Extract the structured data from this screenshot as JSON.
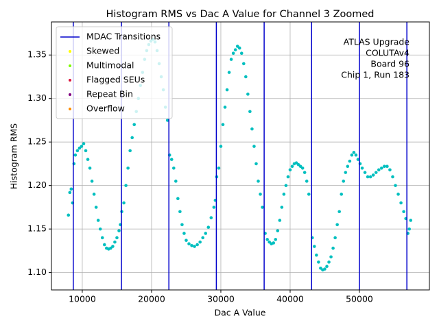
{
  "chart_data": {
    "type": "scatter",
    "title": "Histogram RMS vs Dac A Value for Channel 3 Zoomed",
    "x_label": "Dac A Value",
    "y_label": "Histogram RMS",
    "xlim": [
      5550,
      60100
    ],
    "ylim": [
      1.08,
      1.388
    ],
    "xticks": [
      10000,
      20000,
      30000,
      40000,
      50000
    ],
    "yticks": [
      {
        "value": 1.1,
        "label": "1.10"
      },
      1.15,
      {
        "value": 1.2,
        "label": "1.20"
      },
      1.25,
      {
        "value": 1.3,
        "label": "1.30"
      },
      1.35
    ],
    "grid": true,
    "legend_position": "upper left",
    "annotation": [
      "ATLAS Upgrade",
      "COLUTAv4",
      "Board 96",
      "Chip 1, Run 183"
    ],
    "transitions": {
      "name": "MDAC Transitions",
      "color": "#0000cc",
      "x": [
        8700,
        15650,
        22500,
        29350,
        36250,
        43100,
        50000,
        56850
      ]
    },
    "legend_markers": [
      {
        "name": "Skewed",
        "color": "#ffff00"
      },
      {
        "name": "Multimodal",
        "color": "#7cfc00"
      },
      {
        "name": "Flagged SEUs",
        "color": "#dc143c"
      },
      {
        "name": "Repeat Bin",
        "color": "#800080"
      },
      {
        "name": "Overflow",
        "color": "#ff8c00"
      }
    ],
    "series": [
      {
        "color": "#00bfbf",
        "x": [
          8000,
          8200,
          8400,
          8600,
          8800,
          9000,
          9300,
          9600,
          9900,
          10200,
          10500,
          10800,
          11100,
          11400,
          11700,
          12000,
          12300,
          12600,
          12900,
          13200,
          13500,
          13800,
          14100,
          14400,
          14700,
          15000,
          15300,
          15500,
          15700,
          16000,
          16300,
          16600,
          16900,
          17200,
          17500,
          17800,
          18100,
          18400,
          18700,
          19000,
          19300,
          19600,
          19900,
          20200,
          20500,
          20800,
          21100,
          21400,
          21700,
          22000,
          22300,
          22600,
          22900,
          23200,
          23500,
          23800,
          24100,
          24400,
          24700,
          25000,
          25400,
          25800,
          26200,
          26600,
          27000,
          27400,
          27800,
          28200,
          28600,
          29000,
          29200,
          29400,
          29700,
          30000,
          30300,
          30600,
          30900,
          31200,
          31500,
          31800,
          32100,
          32400,
          32700,
          33000,
          33300,
          33600,
          33900,
          34200,
          34500,
          34800,
          35100,
          35400,
          35700,
          36000,
          36400,
          36700,
          37000,
          37300,
          37600,
          37900,
          38200,
          38500,
          38800,
          39100,
          39400,
          39700,
          40000,
          40300,
          40600,
          40900,
          41200,
          41500,
          41800,
          42100,
          42400,
          42700,
          43200,
          43500,
          43800,
          44100,
          44400,
          44700,
          45000,
          45300,
          45600,
          45900,
          46200,
          46500,
          46800,
          47100,
          47400,
          47700,
          48000,
          48300,
          48600,
          48900,
          49200,
          49500,
          49800,
          50100,
          50400,
          50800,
          51200,
          51600,
          52000,
          52400,
          52800,
          53200,
          53600,
          54000,
          54400,
          54800,
          55200,
          55600,
          56000,
          56400,
          56700,
          57000,
          57200,
          57400
        ],
        "y": [
          1.166,
          1.192,
          1.196,
          1.18,
          1.225,
          1.235,
          1.24,
          1.243,
          1.245,
          1.248,
          1.24,
          1.23,
          1.22,
          1.205,
          1.19,
          1.175,
          1.16,
          1.15,
          1.14,
          1.132,
          1.128,
          1.127,
          1.128,
          1.13,
          1.135,
          1.14,
          1.148,
          1.155,
          1.17,
          1.18,
          1.2,
          1.22,
          1.24,
          1.255,
          1.27,
          1.285,
          1.3,
          1.315,
          1.33,
          1.345,
          1.355,
          1.362,
          1.366,
          1.368,
          1.365,
          1.355,
          1.34,
          1.325,
          1.31,
          1.29,
          1.275,
          1.235,
          1.23,
          1.22,
          1.205,
          1.185,
          1.17,
          1.155,
          1.145,
          1.137,
          1.133,
          1.131,
          1.13,
          1.132,
          1.135,
          1.14,
          1.145,
          1.152,
          1.163,
          1.175,
          1.183,
          1.21,
          1.22,
          1.245,
          1.27,
          1.29,
          1.31,
          1.33,
          1.345,
          1.352,
          1.356,
          1.36,
          1.358,
          1.352,
          1.34,
          1.325,
          1.305,
          1.285,
          1.265,
          1.245,
          1.225,
          1.205,
          1.19,
          1.175,
          1.145,
          1.138,
          1.135,
          1.133,
          1.134,
          1.138,
          1.148,
          1.16,
          1.175,
          1.19,
          1.2,
          1.21,
          1.218,
          1.222,
          1.225,
          1.226,
          1.224,
          1.222,
          1.22,
          1.215,
          1.205,
          1.19,
          1.14,
          1.13,
          1.12,
          1.112,
          1.105,
          1.103,
          1.104,
          1.107,
          1.112,
          1.118,
          1.128,
          1.14,
          1.155,
          1.17,
          1.19,
          1.205,
          1.215,
          1.222,
          1.228,
          1.235,
          1.238,
          1.235,
          1.23,
          1.225,
          1.22,
          1.215,
          1.21,
          1.21,
          1.212,
          1.215,
          1.218,
          1.22,
          1.222,
          1.222,
          1.218,
          1.21,
          1.2,
          1.19,
          1.18,
          1.17,
          1.162,
          1.145,
          1.15,
          1.16
        ]
      }
    ]
  }
}
